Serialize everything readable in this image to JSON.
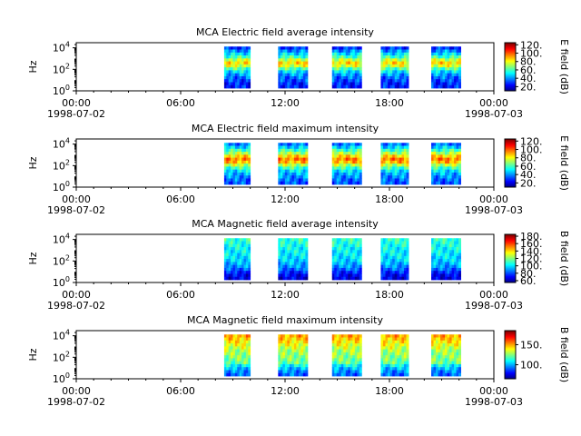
{
  "chart_data": [
    {
      "type": "heatmap",
      "title": "MCA  Electric field average intensity",
      "ylabel": "Hz",
      "y_scale": "log",
      "ylim": [
        1,
        30000
      ],
      "y_ticks": [
        {
          "value": 1,
          "base": "10",
          "exp": "0"
        },
        {
          "value": 100,
          "base": "10",
          "exp": "2"
        },
        {
          "value": 10000,
          "base": "10",
          "exp": "4"
        }
      ],
      "xlim": [
        0,
        24
      ],
      "x_ticks": [
        {
          "value": 0,
          "label": "00:00",
          "date": "1998-07-02"
        },
        {
          "value": 6,
          "label": "06:00",
          "date": ""
        },
        {
          "value": 12,
          "label": "12:00",
          "date": ""
        },
        {
          "value": 18,
          "label": "18:00",
          "date": ""
        },
        {
          "value": 24,
          "label": "00:00",
          "date": "1998-07-03"
        }
      ],
      "colorbar": {
        "label": "E field (dB)",
        "colormap": "jet",
        "range": [
          10,
          125
        ],
        "tick_labels": [
          "20.",
          "40.",
          "60.",
          "80.",
          "100.",
          "120."
        ],
        "tick_values": [
          20,
          40,
          60,
          80,
          100,
          120
        ]
      },
      "data_segments_hours": [
        [
          8.5,
          10.0
        ],
        [
          11.6,
          13.3
        ],
        [
          14.7,
          16.4
        ],
        [
          17.5,
          19.1
        ],
        [
          20.4,
          22.1
        ]
      ],
      "intensity_profile": [
        30,
        40,
        50,
        60,
        75,
        85,
        78,
        62,
        50,
        42,
        36,
        32,
        28,
        28
      ]
    },
    {
      "type": "heatmap",
      "title": "MCA  Electric field maximum intensity",
      "ylabel": "Hz",
      "y_scale": "log",
      "ylim": [
        1,
        30000
      ],
      "y_ticks": [
        {
          "value": 1,
          "base": "10",
          "exp": "0"
        },
        {
          "value": 100,
          "base": "10",
          "exp": "2"
        },
        {
          "value": 10000,
          "base": "10",
          "exp": "4"
        }
      ],
      "xlim": [
        0,
        24
      ],
      "x_ticks": [
        {
          "value": 0,
          "label": "00:00",
          "date": "1998-07-02"
        },
        {
          "value": 6,
          "label": "06:00",
          "date": ""
        },
        {
          "value": 12,
          "label": "12:00",
          "date": ""
        },
        {
          "value": 18,
          "label": "18:00",
          "date": ""
        },
        {
          "value": 24,
          "label": "00:00",
          "date": "1998-07-03"
        }
      ],
      "colorbar": {
        "label": "E field (dB)",
        "colormap": "jet",
        "range": [
          10,
          125
        ],
        "tick_labels": [
          "20.",
          "40.",
          "60.",
          "80.",
          "100.",
          "120."
        ],
        "tick_values": [
          20,
          40,
          60,
          80,
          100,
          120
        ]
      },
      "data_segments_hours": [
        [
          8.5,
          10.0
        ],
        [
          11.6,
          13.3
        ],
        [
          14.7,
          16.4
        ],
        [
          17.5,
          19.1
        ],
        [
          20.4,
          22.1
        ]
      ],
      "intensity_profile": [
        38,
        48,
        60,
        72,
        86,
        96,
        90,
        74,
        60,
        50,
        44,
        40,
        36,
        34
      ]
    },
    {
      "type": "heatmap",
      "title": "MCA  Magnetic field average intensity",
      "ylabel": "Hz",
      "y_scale": "log",
      "ylim": [
        1,
        30000
      ],
      "y_ticks": [
        {
          "value": 1,
          "base": "10",
          "exp": "0"
        },
        {
          "value": 100,
          "base": "10",
          "exp": "2"
        },
        {
          "value": 10000,
          "base": "10",
          "exp": "4"
        }
      ],
      "xlim": [
        0,
        24
      ],
      "x_ticks": [
        {
          "value": 0,
          "label": "00:00",
          "date": "1998-07-02"
        },
        {
          "value": 6,
          "label": "06:00",
          "date": ""
        },
        {
          "value": 12,
          "label": "12:00",
          "date": ""
        },
        {
          "value": 18,
          "label": "18:00",
          "date": ""
        },
        {
          "value": 24,
          "label": "00:00",
          "date": "1998-07-03"
        }
      ],
      "colorbar": {
        "label": "B field (dB)",
        "colormap": "jet",
        "range": [
          55,
          185
        ],
        "tick_labels": [
          "60.",
          "80.",
          "100.",
          "120.",
          "140.",
          "160.",
          "180."
        ],
        "tick_values": [
          60,
          80,
          100,
          120,
          140,
          160,
          180
        ]
      },
      "data_segments_hours": [
        [
          8.5,
          10.0
        ],
        [
          11.6,
          13.3
        ],
        [
          14.7,
          16.4
        ],
        [
          17.5,
          19.1
        ],
        [
          20.4,
          22.1
        ]
      ],
      "intensity_profile": [
        110,
        108,
        106,
        104,
        103,
        102,
        100,
        98,
        94,
        90,
        84,
        76,
        70,
        68
      ]
    },
    {
      "type": "heatmap",
      "title": "MCA  Magnetic field maximum intensity",
      "ylabel": "Hz",
      "y_scale": "log",
      "ylim": [
        1,
        30000
      ],
      "y_ticks": [
        {
          "value": 1,
          "base": "10",
          "exp": "0"
        },
        {
          "value": 100,
          "base": "10",
          "exp": "2"
        },
        {
          "value": 10000,
          "base": "10",
          "exp": "4"
        }
      ],
      "xlim": [
        0,
        24
      ],
      "x_ticks": [
        {
          "value": 0,
          "label": "00:00",
          "date": "1998-07-02"
        },
        {
          "value": 6,
          "label": "06:00",
          "date": ""
        },
        {
          "value": 12,
          "label": "12:00",
          "date": ""
        },
        {
          "value": 18,
          "label": "18:00",
          "date": ""
        },
        {
          "value": 24,
          "label": "00:00",
          "date": "1998-07-03"
        }
      ],
      "colorbar": {
        "label": "B field (dB)",
        "colormap": "jet",
        "range": [
          65,
          185
        ],
        "tick_labels": [
          "100.",
          "150."
        ],
        "tick_values": [
          100,
          150
        ]
      },
      "data_segments_hours": [
        [
          8.5,
          10.0
        ],
        [
          11.6,
          13.3
        ],
        [
          14.7,
          16.4
        ],
        [
          17.5,
          19.1
        ],
        [
          20.4,
          22.1
        ]
      ],
      "intensity_profile": [
        150,
        146,
        142,
        138,
        134,
        130,
        128,
        126,
        124,
        122,
        110,
        102,
        96,
        92
      ]
    }
  ]
}
